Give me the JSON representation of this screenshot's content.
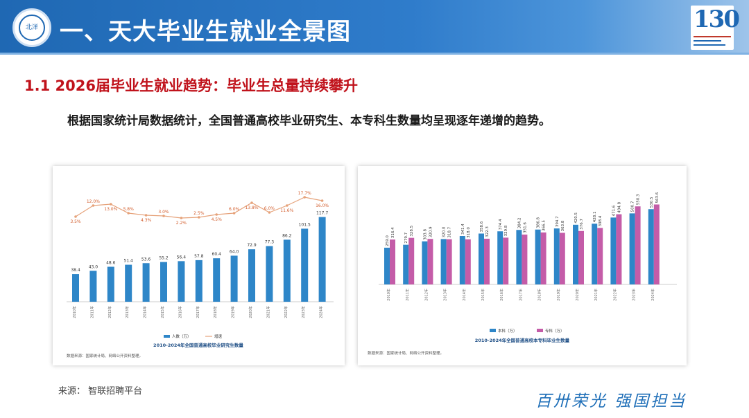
{
  "header": {
    "title": "一、天大毕业生就业全景图",
    "logo_text": "北洋",
    "badge_text": "130"
  },
  "subtitle": "1.1 2026届毕业生就业趋势：毕业生总量持续攀升",
  "body_text": "根据国家统计局数据统计，全国普通高校毕业研究生、本专科生数量均呈现逐年递增的趋势。",
  "source": "来源：  智联招聘平台",
  "slogan": "百卅荣光   强国担当",
  "colors": {
    "bar_blue": "#2e86c8",
    "bar_pink": "#c45ca8",
    "line_orange": "#e6a27a",
    "accent_red": "#c0121b"
  },
  "chart_data": [
    {
      "type": "bar",
      "title": "2010-2024年全国普通高校毕业研究生数量",
      "categories": [
        "2010年",
        "2011年",
        "2012年",
        "2013年",
        "2014年",
        "2015年",
        "2016年",
        "2017年",
        "2018年",
        "2019年",
        "2020年",
        "2021年",
        "2022年",
        "2023年",
        "2024年"
      ],
      "series": [
        {
          "name": "人数（万）",
          "kind": "bar",
          "values": [
            38.4,
            43.0,
            48.6,
            51.4,
            53.6,
            55.2,
            56.4,
            57.8,
            60.4,
            64.0,
            72.9,
            77.3,
            86.2,
            101.5,
            117.7
          ]
        },
        {
          "name": "增速",
          "kind": "line",
          "values": [
            "3.5%",
            "12.0%",
            "13.0%",
            "5.8%",
            "4.3%",
            "3.0%",
            "2.2%",
            "2.5%",
            "4.5%",
            "6.0%",
            "13.8%",
            "6.0%",
            "11.6%",
            "17.7%",
            "16.0%"
          ]
        }
      ],
      "ylim": [
        0,
        125
      ],
      "legend": "bottom",
      "note": "数据来源：国家统计局、网络公开资料整理。"
    },
    {
      "type": "bar",
      "title": "2010-2024年全国普通高校本专科毕业生数量",
      "categories": [
        "2010年",
        "2011年",
        "2012年",
        "2013年",
        "2014年",
        "2015年",
        "2016年",
        "2017年",
        "2018年",
        "2019年",
        "2020年",
        "2021年",
        "2022年",
        "2023年",
        "2024年"
      ],
      "series": [
        {
          "name": "本科（万）",
          "values": [
            259.0,
            279.7,
            303.8,
            320.0,
            341.4,
            358.6,
            374.4,
            384.2,
            386.8,
            394.7,
            420.5,
            428.1,
            471.6,
            500.7,
            530.5
          ]
        },
        {
          "name": "专科（万）",
          "values": [
            316.4,
            328.5,
            320.9,
            318.7,
            318.0,
            322.3,
            329.8,
            351.6,
            366.5,
            363.8,
            376.7,
            398.4,
            494.8,
            550.3,
            563.6
          ]
        }
      ],
      "ylim": [
        0,
        600
      ],
      "legend": "bottom",
      "note": "数据来源：国家统计局、网络公开资料整理。"
    }
  ]
}
